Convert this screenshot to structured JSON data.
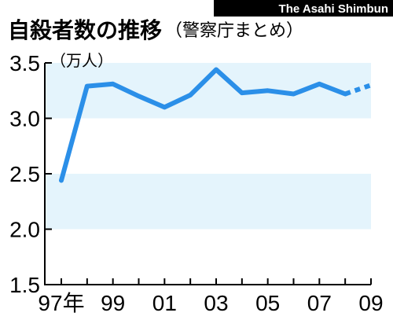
{
  "header": {
    "title": "自殺者数の推移",
    "subtitle": "（警察庁まとめ）",
    "credit": "The Asahi Shimbun"
  },
  "colors": {
    "band": "#e4f4fc",
    "line": "#2b8fe8",
    "axis": "#000000",
    "credit_bg": "#000000"
  },
  "chart_data": {
    "type": "line",
    "ylabel": "（万人）",
    "ylim": [
      1.5,
      3.5
    ],
    "yticks": [
      {
        "value": 3.5,
        "label": "3.5"
      },
      {
        "value": 3.0,
        "label": "3.0"
      },
      {
        "value": 2.5,
        "label": "2.5"
      },
      {
        "value": 2.0,
        "label": "2.0"
      },
      {
        "value": 1.5,
        "label": "1.5"
      }
    ],
    "xlim": [
      1997,
      2009
    ],
    "xticks": [
      {
        "value": 1997,
        "label": "97年"
      },
      {
        "value": 1999,
        "label": "99"
      },
      {
        "value": 2001,
        "label": "01"
      },
      {
        "value": 2003,
        "label": "03"
      },
      {
        "value": 2005,
        "label": "05"
      },
      {
        "value": 2007,
        "label": "07"
      },
      {
        "value": 2009,
        "label": "09"
      }
    ],
    "bands": [
      [
        3.0,
        3.5
      ],
      [
        2.0,
        2.5
      ]
    ],
    "series": [
      {
        "style": "solid",
        "x": [
          1997,
          1998,
          1999,
          2000,
          2001,
          2002,
          2003,
          2004,
          2005,
          2006,
          2007,
          2008
        ],
        "values": [
          2.44,
          3.29,
          3.31,
          3.2,
          3.1,
          3.21,
          3.44,
          3.23,
          3.25,
          3.22,
          3.31,
          3.22
        ]
      },
      {
        "style": "dashed",
        "x": [
          2008,
          2009
        ],
        "values": [
          3.22,
          3.3
        ]
      }
    ]
  }
}
